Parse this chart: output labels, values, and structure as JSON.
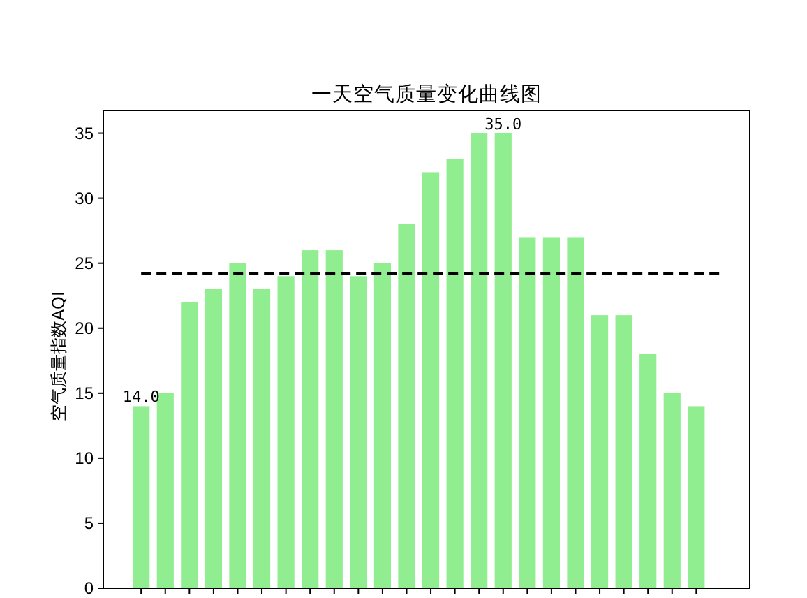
{
  "chart_data": {
    "type": "bar",
    "title": "一天空气质量变化曲线图",
    "ylabel": "空气质量指数AQI",
    "categories": [
      null,
      null,
      null,
      null,
      null,
      null,
      null,
      null,
      null,
      null,
      null,
      null,
      null,
      null,
      null,
      null,
      null,
      null,
      null,
      null,
      null,
      null,
      null,
      null
    ],
    "values": [
      14,
      15,
      22,
      23,
      25,
      23,
      24,
      26,
      26,
      24,
      25,
      28,
      32,
      33,
      35,
      35,
      27,
      27,
      27,
      21,
      21,
      18,
      15,
      14
    ],
    "value_labels": [
      "14.0",
      null,
      null,
      null,
      null,
      null,
      null,
      null,
      null,
      null,
      null,
      null,
      null,
      null,
      null,
      "35.0",
      null,
      null,
      null,
      null,
      null,
      null,
      null,
      null
    ],
    "color": "#90ee90",
    "ylim": [
      0,
      36.75
    ],
    "yticks": [
      0,
      5,
      10,
      15,
      20,
      25,
      30,
      35
    ],
    "ref_lines": [
      {
        "axis": "y",
        "value": 24.2,
        "color": "#000000",
        "line_style": "dashed"
      }
    ],
    "tick_labels": "y"
  }
}
